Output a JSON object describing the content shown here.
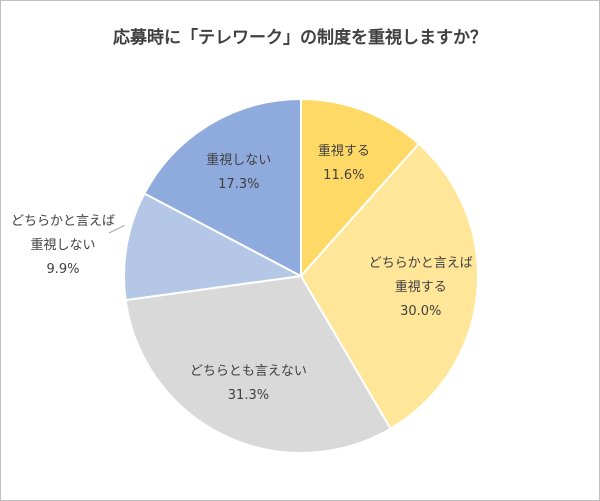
{
  "chart_data": {
    "type": "pie",
    "title": "応募時に「テレワーク」の制度を重視しますか？",
    "categories": [
      "重視する",
      "どちらかと言えば\n重視する",
      "どちらとも言えない",
      "どちらかと言えば\n重視しない",
      "重視しない"
    ],
    "values": [
      11.6,
      30.0,
      31.3,
      9.9,
      17.3
    ],
    "value_labels": [
      "11.6%",
      "30.0%",
      "31.3%",
      "9.9%",
      "17.3%"
    ],
    "colors": [
      "#ffd966",
      "#ffe699",
      "#d9d9d9",
      "#b4c7e7",
      "#8faadc"
    ]
  }
}
